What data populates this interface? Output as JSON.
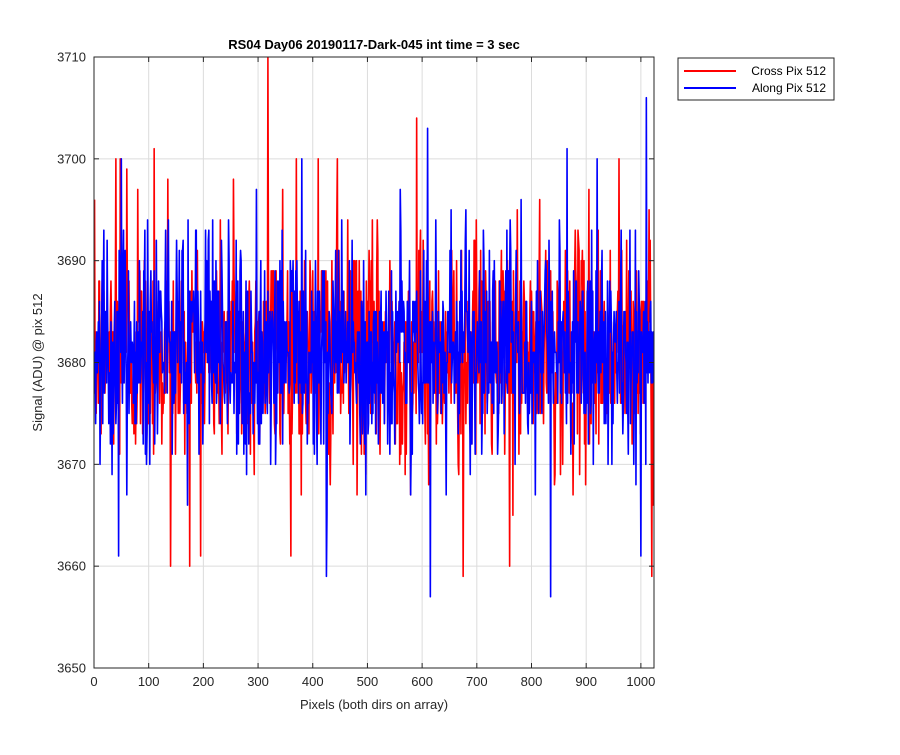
{
  "colors": {
    "background": "#ffffff",
    "axes_background": "#ffffff",
    "grid": "#dcdcdc",
    "axis": "#262626",
    "cross_series": "#ff0000",
    "along_series": "#0000ff"
  },
  "chart_data": {
    "type": "line",
    "title": "RS04 Day06 20190117-Dark-045 int time = 3 sec",
    "xlabel": "Pixels (both dirs on array)",
    "ylabel": "Signal (ADU) @ pix 512",
    "xlim": [
      0,
      1024
    ],
    "ylim": [
      3650,
      3710
    ],
    "xticks": [
      0,
      100,
      200,
      300,
      400,
      500,
      600,
      700,
      800,
      900,
      1000
    ],
    "yticks": [
      3650,
      3660,
      3670,
      3680,
      3690,
      3700,
      3710
    ],
    "grid": true,
    "legend_position": "outside-top-right",
    "series": [
      {
        "name": "Cross Pix 512",
        "color": "#ff0000",
        "x_start": 1,
        "x_step": 1,
        "count": 1024,
        "mean": 3681,
        "std": 5.5,
        "min": 3659,
        "max": 3710,
        "peaks": [
          {
            "x": 40,
            "y": 3700
          },
          {
            "x": 48,
            "y": 3700
          },
          {
            "x": 60,
            "y": 3699
          },
          {
            "x": 80,
            "y": 3697
          },
          {
            "x": 110,
            "y": 3701
          },
          {
            "x": 135,
            "y": 3698
          },
          {
            "x": 140,
            "y": 3660
          },
          {
            "x": 175,
            "y": 3660
          },
          {
            "x": 255,
            "y": 3698
          },
          {
            "x": 318,
            "y": 3710
          },
          {
            "x": 345,
            "y": 3697
          },
          {
            "x": 370,
            "y": 3700
          },
          {
            "x": 410,
            "y": 3700
          },
          {
            "x": 445,
            "y": 3700
          },
          {
            "x": 590,
            "y": 3704
          },
          {
            "x": 675,
            "y": 3659
          },
          {
            "x": 760,
            "y": 3660
          },
          {
            "x": 905,
            "y": 3697
          },
          {
            "x": 960,
            "y": 3700
          },
          {
            "x": 1015,
            "y": 3695
          },
          {
            "x": 1020,
            "y": 3659
          }
        ]
      },
      {
        "name": "Along Pix 512",
        "color": "#0000ff",
        "x_start": 1,
        "x_step": 1,
        "count": 1024,
        "mean": 3681,
        "std": 5.5,
        "min": 3657,
        "max": 3706,
        "peaks": [
          {
            "x": 45,
            "y": 3661
          },
          {
            "x": 50,
            "y": 3700
          },
          {
            "x": 380,
            "y": 3700
          },
          {
            "x": 425,
            "y": 3659
          },
          {
            "x": 610,
            "y": 3703
          },
          {
            "x": 615,
            "y": 3657
          },
          {
            "x": 835,
            "y": 3657
          },
          {
            "x": 865,
            "y": 3701
          },
          {
            "x": 920,
            "y": 3700
          },
          {
            "x": 1010,
            "y": 3706
          },
          {
            "x": 1000,
            "y": 3661
          }
        ]
      }
    ]
  }
}
